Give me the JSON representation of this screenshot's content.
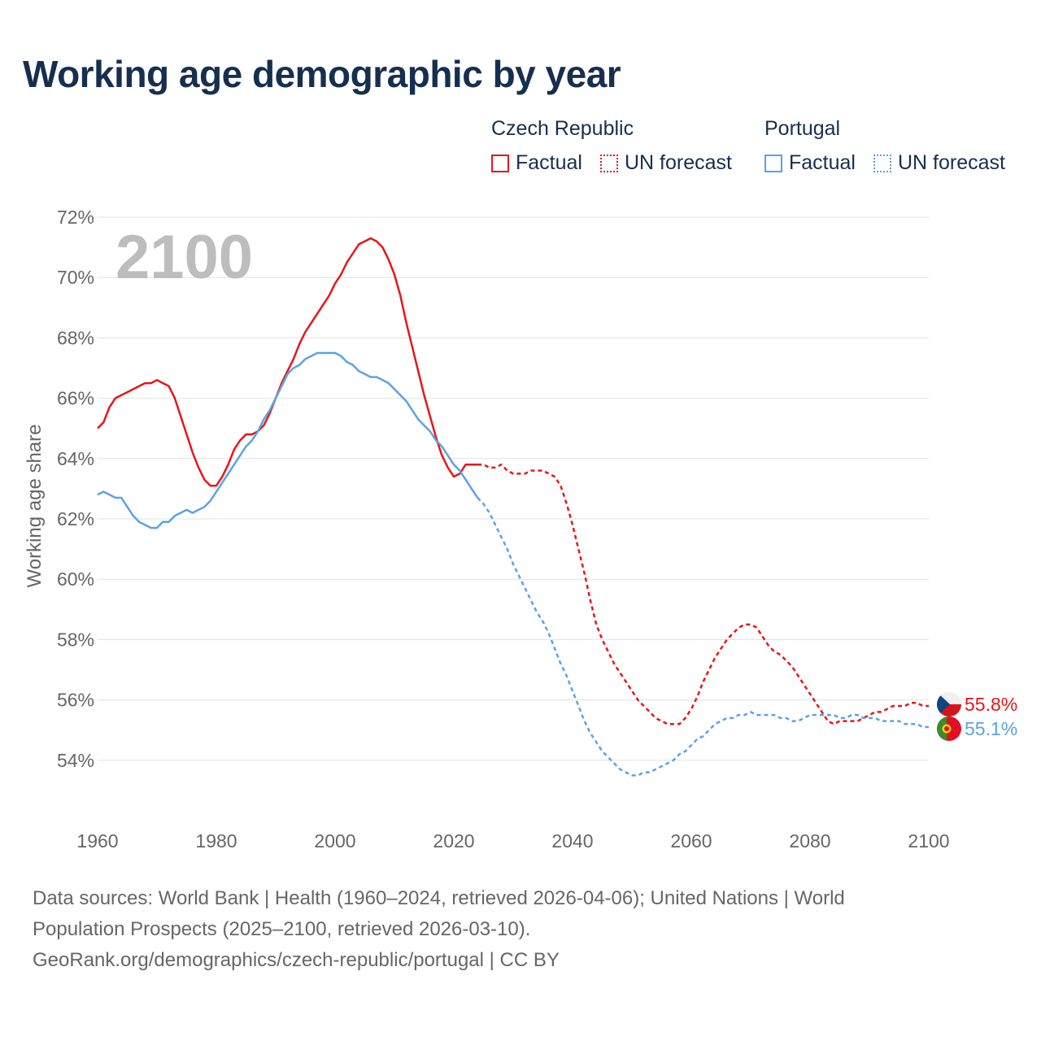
{
  "title": "Working age demographic by year",
  "legend": {
    "groups": [
      {
        "name": "Czech Republic",
        "color": "#e8151b",
        "factual_label": "Factual",
        "forecast_label": "UN forecast"
      },
      {
        "name": "Portugal",
        "color": "#5ba3e1",
        "factual_label": "Factual",
        "forecast_label": "UN forecast"
      }
    ]
  },
  "year_overlay": "2100",
  "end_labels": {
    "czech": "55.8%",
    "portugal": "55.1%"
  },
  "footer": {
    "line1": "Data sources: World Bank | Health (1960–2024, retrieved 2026-04-06); United Nations | World",
    "line2": "Population Prospects (2025–2100, retrieved 2026-03-10).",
    "line3": "GeoRank.org/demographics/czech-republic/portugal | CC BY"
  },
  "chart_data": {
    "type": "line",
    "title": "Working age demographic by year",
    "xlabel": "",
    "ylabel": "Working age share",
    "xlim": [
      1960,
      2100
    ],
    "ylim": [
      52.2,
      72
    ],
    "x_ticks": [
      1960,
      1980,
      2000,
      2020,
      2040,
      2060,
      2080,
      2100
    ],
    "y_ticks": [
      54,
      56,
      58,
      60,
      62,
      64,
      66,
      68,
      70,
      72
    ],
    "y_tick_suffix": "%",
    "grid": true,
    "forecast_start": 2024,
    "series": [
      {
        "name": "Czech Republic",
        "color": "#e8151b",
        "points": [
          [
            1960,
            65.0
          ],
          [
            1961,
            65.2
          ],
          [
            1962,
            65.7
          ],
          [
            1963,
            66.0
          ],
          [
            1964,
            66.1
          ],
          [
            1965,
            66.2
          ],
          [
            1966,
            66.3
          ],
          [
            1967,
            66.4
          ],
          [
            1968,
            66.5
          ],
          [
            1969,
            66.5
          ],
          [
            1970,
            66.6
          ],
          [
            1971,
            66.5
          ],
          [
            1972,
            66.4
          ],
          [
            1973,
            66.0
          ],
          [
            1974,
            65.4
          ],
          [
            1975,
            64.8
          ],
          [
            1976,
            64.2
          ],
          [
            1977,
            63.7
          ],
          [
            1978,
            63.3
          ],
          [
            1979,
            63.1
          ],
          [
            1980,
            63.1
          ],
          [
            1981,
            63.4
          ],
          [
            1982,
            63.8
          ],
          [
            1983,
            64.3
          ],
          [
            1984,
            64.6
          ],
          [
            1985,
            64.8
          ],
          [
            1986,
            64.8
          ],
          [
            1987,
            64.9
          ],
          [
            1988,
            65.1
          ],
          [
            1989,
            65.5
          ],
          [
            1990,
            66.0
          ],
          [
            1991,
            66.5
          ],
          [
            1992,
            66.9
          ],
          [
            1993,
            67.3
          ],
          [
            1994,
            67.8
          ],
          [
            1995,
            68.2
          ],
          [
            1996,
            68.5
          ],
          [
            1997,
            68.8
          ],
          [
            1998,
            69.1
          ],
          [
            1999,
            69.4
          ],
          [
            2000,
            69.8
          ],
          [
            2001,
            70.1
          ],
          [
            2002,
            70.5
          ],
          [
            2003,
            70.8
          ],
          [
            2004,
            71.1
          ],
          [
            2005,
            71.2
          ],
          [
            2006,
            71.3
          ],
          [
            2007,
            71.2
          ],
          [
            2008,
            71.0
          ],
          [
            2009,
            70.6
          ],
          [
            2010,
            70.1
          ],
          [
            2011,
            69.4
          ],
          [
            2012,
            68.5
          ],
          [
            2013,
            67.7
          ],
          [
            2014,
            66.9
          ],
          [
            2015,
            66.1
          ],
          [
            2016,
            65.4
          ],
          [
            2017,
            64.7
          ],
          [
            2018,
            64.1
          ],
          [
            2019,
            63.7
          ],
          [
            2020,
            63.4
          ],
          [
            2021,
            63.5
          ],
          [
            2022,
            63.8
          ],
          [
            2023,
            63.8
          ],
          [
            2024,
            63.8
          ],
          [
            2025,
            63.8
          ],
          [
            2026,
            63.7
          ],
          [
            2027,
            63.7
          ],
          [
            2028,
            63.8
          ],
          [
            2029,
            63.6
          ],
          [
            2030,
            63.5
          ],
          [
            2031,
            63.5
          ],
          [
            2032,
            63.5
          ],
          [
            2033,
            63.6
          ],
          [
            2034,
            63.6
          ],
          [
            2035,
            63.6
          ],
          [
            2036,
            63.5
          ],
          [
            2037,
            63.4
          ],
          [
            2038,
            63.1
          ],
          [
            2039,
            62.5
          ],
          [
            2040,
            61.8
          ],
          [
            2041,
            61.0
          ],
          [
            2042,
            60.2
          ],
          [
            2043,
            59.3
          ],
          [
            2044,
            58.5
          ],
          [
            2045,
            58.0
          ],
          [
            2046,
            57.6
          ],
          [
            2047,
            57.2
          ],
          [
            2048,
            56.9
          ],
          [
            2049,
            56.6
          ],
          [
            2050,
            56.3
          ],
          [
            2051,
            56.0
          ],
          [
            2052,
            55.8
          ],
          [
            2053,
            55.6
          ],
          [
            2054,
            55.4
          ],
          [
            2055,
            55.3
          ],
          [
            2056,
            55.2
          ],
          [
            2057,
            55.2
          ],
          [
            2058,
            55.2
          ],
          [
            2059,
            55.4
          ],
          [
            2060,
            55.7
          ],
          [
            2061,
            56.1
          ],
          [
            2062,
            56.6
          ],
          [
            2063,
            57.0
          ],
          [
            2064,
            57.4
          ],
          [
            2065,
            57.7
          ],
          [
            2066,
            58.0
          ],
          [
            2067,
            58.2
          ],
          [
            2068,
            58.4
          ],
          [
            2069,
            58.5
          ],
          [
            2070,
            58.5
          ],
          [
            2071,
            58.4
          ],
          [
            2072,
            58.1
          ],
          [
            2073,
            57.8
          ],
          [
            2074,
            57.6
          ],
          [
            2075,
            57.5
          ],
          [
            2076,
            57.3
          ],
          [
            2077,
            57.1
          ],
          [
            2078,
            56.8
          ],
          [
            2079,
            56.5
          ],
          [
            2080,
            56.2
          ],
          [
            2081,
            55.9
          ],
          [
            2082,
            55.6
          ],
          [
            2083,
            55.3
          ],
          [
            2084,
            55.2
          ],
          [
            2085,
            55.3
          ],
          [
            2086,
            55.3
          ],
          [
            2087,
            55.3
          ],
          [
            2088,
            55.3
          ],
          [
            2089,
            55.4
          ],
          [
            2090,
            55.5
          ],
          [
            2091,
            55.6
          ],
          [
            2092,
            55.6
          ],
          [
            2093,
            55.7
          ],
          [
            2094,
            55.8
          ],
          [
            2095,
            55.8
          ],
          [
            2096,
            55.8
          ],
          [
            2097,
            55.9
          ],
          [
            2098,
            55.9
          ],
          [
            2099,
            55.8
          ],
          [
            2100,
            55.8
          ]
        ]
      },
      {
        "name": "Portugal",
        "color": "#5ba3e1",
        "points": [
          [
            1960,
            62.8
          ],
          [
            1961,
            62.9
          ],
          [
            1962,
            62.8
          ],
          [
            1963,
            62.7
          ],
          [
            1964,
            62.7
          ],
          [
            1965,
            62.4
          ],
          [
            1966,
            62.1
          ],
          [
            1967,
            61.9
          ],
          [
            1968,
            61.8
          ],
          [
            1969,
            61.7
          ],
          [
            1970,
            61.7
          ],
          [
            1971,
            61.9
          ],
          [
            1972,
            61.9
          ],
          [
            1973,
            62.1
          ],
          [
            1974,
            62.2
          ],
          [
            1975,
            62.3
          ],
          [
            1976,
            62.2
          ],
          [
            1977,
            62.3
          ],
          [
            1978,
            62.4
          ],
          [
            1979,
            62.6
          ],
          [
            1980,
            62.9
          ],
          [
            1981,
            63.2
          ],
          [
            1982,
            63.5
          ],
          [
            1983,
            63.8
          ],
          [
            1984,
            64.1
          ],
          [
            1985,
            64.4
          ],
          [
            1986,
            64.6
          ],
          [
            1987,
            64.9
          ],
          [
            1988,
            65.3
          ],
          [
            1989,
            65.6
          ],
          [
            1990,
            66.0
          ],
          [
            1991,
            66.4
          ],
          [
            1992,
            66.8
          ],
          [
            1993,
            67.0
          ],
          [
            1994,
            67.1
          ],
          [
            1995,
            67.3
          ],
          [
            1996,
            67.4
          ],
          [
            1997,
            67.5
          ],
          [
            1998,
            67.5
          ],
          [
            1999,
            67.5
          ],
          [
            2000,
            67.5
          ],
          [
            2001,
            67.4
          ],
          [
            2002,
            67.2
          ],
          [
            2003,
            67.1
          ],
          [
            2004,
            66.9
          ],
          [
            2005,
            66.8
          ],
          [
            2006,
            66.7
          ],
          [
            2007,
            66.7
          ],
          [
            2008,
            66.6
          ],
          [
            2009,
            66.5
          ],
          [
            2010,
            66.3
          ],
          [
            2011,
            66.1
          ],
          [
            2012,
            65.9
          ],
          [
            2013,
            65.6
          ],
          [
            2014,
            65.3
          ],
          [
            2015,
            65.1
          ],
          [
            2016,
            64.9
          ],
          [
            2017,
            64.6
          ],
          [
            2018,
            64.4
          ],
          [
            2019,
            64.1
          ],
          [
            2020,
            63.8
          ],
          [
            2021,
            63.6
          ],
          [
            2022,
            63.3
          ],
          [
            2023,
            63.0
          ],
          [
            2024,
            62.7
          ],
          [
            2025,
            62.5
          ],
          [
            2026,
            62.2
          ],
          [
            2027,
            61.8
          ],
          [
            2028,
            61.4
          ],
          [
            2029,
            61.0
          ],
          [
            2030,
            60.5
          ],
          [
            2031,
            60.1
          ],
          [
            2032,
            59.7
          ],
          [
            2033,
            59.3
          ],
          [
            2034,
            58.9
          ],
          [
            2035,
            58.6
          ],
          [
            2036,
            58.2
          ],
          [
            2037,
            57.7
          ],
          [
            2038,
            57.2
          ],
          [
            2039,
            56.8
          ],
          [
            2040,
            56.3
          ],
          [
            2041,
            55.8
          ],
          [
            2042,
            55.3
          ],
          [
            2043,
            54.9
          ],
          [
            2044,
            54.6
          ],
          [
            2045,
            54.3
          ],
          [
            2046,
            54.1
          ],
          [
            2047,
            53.9
          ],
          [
            2048,
            53.7
          ],
          [
            2049,
            53.6
          ],
          [
            2050,
            53.5
          ],
          [
            2051,
            53.5
          ],
          [
            2052,
            53.6
          ],
          [
            2053,
            53.6
          ],
          [
            2054,
            53.7
          ],
          [
            2055,
            53.8
          ],
          [
            2056,
            53.9
          ],
          [
            2057,
            54.0
          ],
          [
            2058,
            54.2
          ],
          [
            2059,
            54.3
          ],
          [
            2060,
            54.5
          ],
          [
            2061,
            54.7
          ],
          [
            2062,
            54.8
          ],
          [
            2063,
            55.0
          ],
          [
            2064,
            55.2
          ],
          [
            2065,
            55.3
          ],
          [
            2066,
            55.4
          ],
          [
            2067,
            55.4
          ],
          [
            2068,
            55.5
          ],
          [
            2069,
            55.5
          ],
          [
            2070,
            55.6
          ],
          [
            2071,
            55.5
          ],
          [
            2072,
            55.5
          ],
          [
            2073,
            55.5
          ],
          [
            2074,
            55.5
          ],
          [
            2075,
            55.4
          ],
          [
            2076,
            55.4
          ],
          [
            2077,
            55.3
          ],
          [
            2078,
            55.3
          ],
          [
            2079,
            55.4
          ],
          [
            2080,
            55.5
          ],
          [
            2081,
            55.5
          ],
          [
            2082,
            55.5
          ],
          [
            2083,
            55.5
          ],
          [
            2084,
            55.5
          ],
          [
            2085,
            55.4
          ],
          [
            2086,
            55.4
          ],
          [
            2087,
            55.5
          ],
          [
            2088,
            55.5
          ],
          [
            2089,
            55.4
          ],
          [
            2090,
            55.4
          ],
          [
            2091,
            55.4
          ],
          [
            2092,
            55.3
          ],
          [
            2093,
            55.3
          ],
          [
            2094,
            55.3
          ],
          [
            2095,
            55.3
          ],
          [
            2096,
            55.2
          ],
          [
            2097,
            55.2
          ],
          [
            2098,
            55.2
          ],
          [
            2099,
            55.1
          ],
          [
            2100,
            55.1
          ]
        ]
      }
    ]
  }
}
